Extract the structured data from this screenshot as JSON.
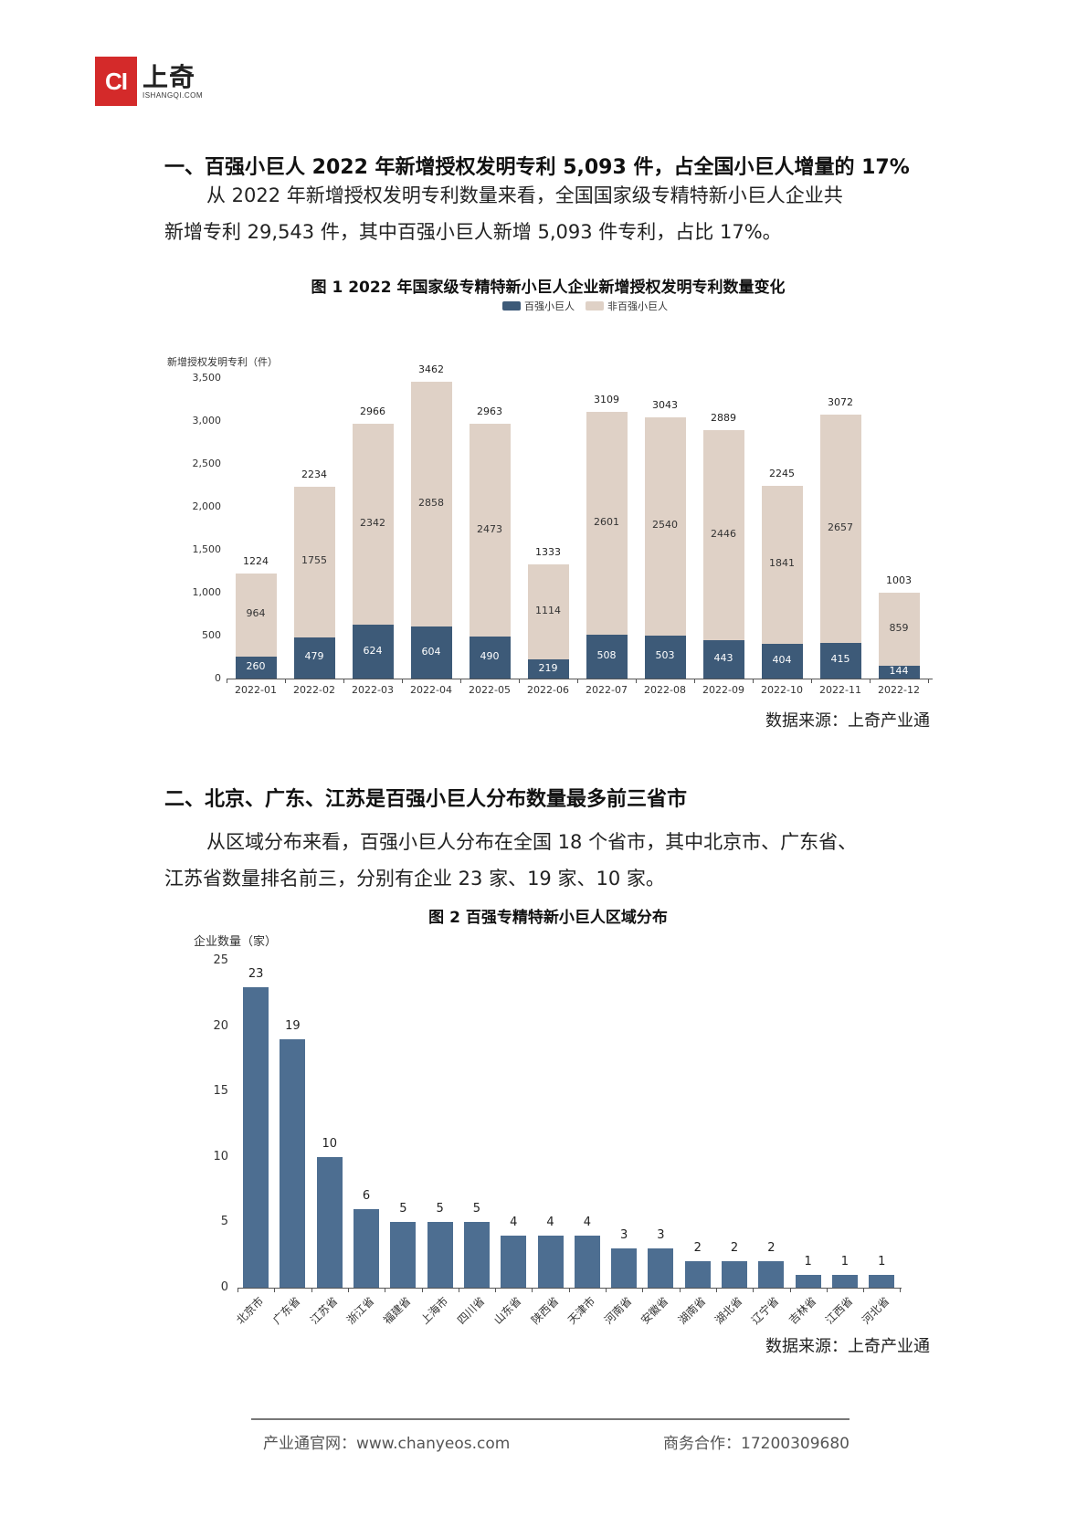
{
  "logo": {
    "mark": "CI",
    "cn": "上奇",
    "en": "ISHANGQI.COM"
  },
  "section1": {
    "heading": "一、百强小巨人 2022 年新增授权发明专利 5,093 件，占全国小巨人增量的 17%",
    "para_line1": "从 2022 年新增授权发明专利数量来看，全国国家级专精特新小巨人企业共",
    "para_line2": "新增专利 29,543 件，其中百强小巨人新增 5,093 件专利，占比 17%。"
  },
  "figure1": {
    "title": "图 1 2022 年国家级专精特新小巨人企业新增授权发明专利数量变化",
    "source": "数据来源：上奇产业通"
  },
  "section2": {
    "heading": "二、北京、广东、江苏是百强小巨人分布数量最多前三省市",
    "para_line1": "从区域分布来看，百强小巨人分布在全国 18 个省市，其中北京市、广东省、",
    "para_line2": "江苏省数量排名前三，分别有企业 23 家、19 家、10 家。"
  },
  "figure2": {
    "title": "图 2 百强专精特新小巨人区域分布",
    "source": "数据来源：上奇产业通"
  },
  "footer": {
    "left": "产业通官网：www.chanyeos.com",
    "right": "商务合作：17200309680"
  },
  "colors": {
    "top100": "#3d5a78",
    "non_top100": "#dfd1c6",
    "region_bar": "#4d6e91"
  },
  "chart_data": [
    {
      "type": "bar",
      "stacked": true,
      "title": "图 1 2022 年国家级专精特新小巨人企业新增授权发明专利数量变化",
      "ylabel": "新增授权发明专利（件）",
      "xlabel": "",
      "ylim": [
        0,
        3500
      ],
      "yticks": [
        "0",
        "500",
        "1,000",
        "1,500",
        "2,000",
        "2,500",
        "3,000",
        "3,500"
      ],
      "legend": [
        "百强小巨人",
        "非百强小巨人"
      ],
      "legend_position": "top",
      "categories": [
        "2022-01",
        "2022-02",
        "2022-03",
        "2022-04",
        "2022-05",
        "2022-06",
        "2022-07",
        "2022-08",
        "2022-09",
        "2022-10",
        "2022-11",
        "2022-12"
      ],
      "series": [
        {
          "name": "百强小巨人",
          "values": [
            260,
            479,
            624,
            604,
            490,
            219,
            508,
            503,
            443,
            404,
            415,
            144
          ]
        },
        {
          "name": "非百强小巨人",
          "values": [
            964,
            1755,
            2342,
            2858,
            2473,
            1114,
            2601,
            2540,
            2446,
            1841,
            2657,
            859
          ]
        }
      ],
      "totals": [
        1224,
        2234,
        2966,
        3462,
        2963,
        1333,
        3109,
        3043,
        2889,
        2245,
        3072,
        1003
      ]
    },
    {
      "type": "bar",
      "title": "图 2 百强专精特新小巨人区域分布",
      "ylabel": "企业数量（家）",
      "xlabel": "",
      "ylim": [
        0,
        25
      ],
      "yticks": [
        "0",
        "5",
        "10",
        "15",
        "20",
        "25"
      ],
      "categories": [
        "北京市",
        "广东省",
        "江苏省",
        "浙江省",
        "福建省",
        "上海市",
        "四川省",
        "山东省",
        "陕西省",
        "天津市",
        "河南省",
        "安徽省",
        "湖南省",
        "湖北省",
        "辽宁省",
        "吉林省",
        "江西省",
        "河北省"
      ],
      "values": [
        23,
        19,
        10,
        6,
        5,
        5,
        5,
        4,
        4,
        4,
        3,
        3,
        2,
        2,
        2,
        1,
        1,
        1
      ]
    }
  ]
}
